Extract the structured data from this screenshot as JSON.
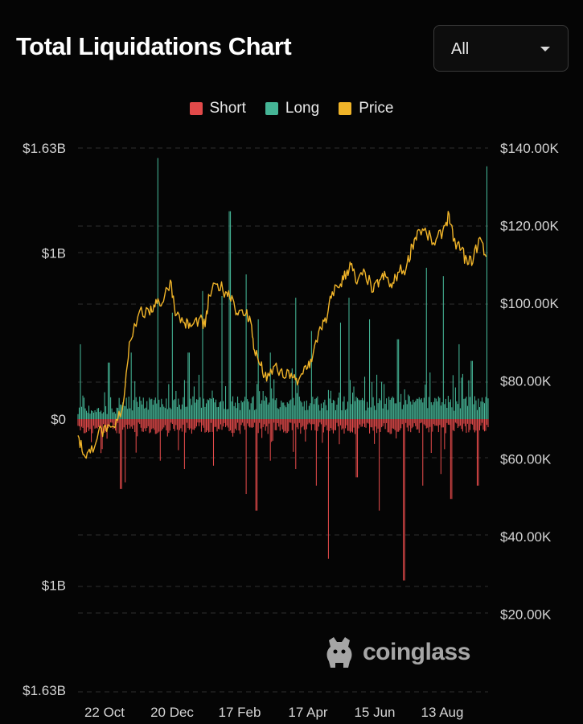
{
  "header": {
    "title": "Total Liquidations Chart",
    "range_selector": {
      "value": "All",
      "icon": "chevron-down-icon"
    }
  },
  "legend": [
    {
      "label": "Short",
      "color": "#e24a4a"
    },
    {
      "label": "Long",
      "color": "#45b596"
    },
    {
      "label": "Price",
      "color": "#f0b429"
    }
  ],
  "watermark": {
    "text": "coinglass",
    "icon": "coinglass-logo-icon"
  },
  "chart_data": {
    "type": "bar",
    "title": "Total Liquidations Chart",
    "grid": true,
    "legend_position": "top-center",
    "x_ticks": [
      "22 Oct",
      "20 Dec",
      "17 Feb",
      "17 Apr",
      "15 Jun",
      "13 Aug"
    ],
    "left_axis": {
      "ticks": [
        {
          "value": 1.63,
          "label": "$1.63B"
        },
        {
          "value": 1.0,
          "label": "$1B"
        },
        {
          "value": 0,
          "label": "$0"
        },
        {
          "value": -1.0,
          "label": "$1B"
        },
        {
          "value": -1.63,
          "label": "$1.63B"
        }
      ],
      "range": [
        -1.63,
        1.63
      ],
      "unit": "billion USD"
    },
    "right_axis": {
      "ticks": [
        {
          "value": 140000,
          "label": "$140.00K"
        },
        {
          "value": 120000,
          "label": "$120.00K"
        },
        {
          "value": 100000,
          "label": "$100.00K"
        },
        {
          "value": 80000,
          "label": "$80.00K"
        },
        {
          "value": 60000,
          "label": "$60.00K"
        },
        {
          "value": 40000,
          "label": "$40.00K"
        },
        {
          "value": 20000,
          "label": "$20.00K"
        }
      ],
      "range": [
        0,
        140000
      ]
    },
    "series": [
      {
        "name": "Long",
        "color": "#45b596",
        "kind": "bar-up",
        "peaks": [
          {
            "t": 0.005,
            "v": 0.45
          },
          {
            "t": 0.075,
            "v": 0.34
          },
          {
            "t": 0.13,
            "v": 0.4
          },
          {
            "t": 0.195,
            "v": 1.57
          },
          {
            "t": 0.23,
            "v": 0.64
          },
          {
            "t": 0.27,
            "v": 0.4
          },
          {
            "t": 0.305,
            "v": 0.77
          },
          {
            "t": 0.35,
            "v": 0.74
          },
          {
            "t": 0.37,
            "v": 1.25
          },
          {
            "t": 0.41,
            "v": 0.87
          },
          {
            "t": 0.44,
            "v": 0.6
          },
          {
            "t": 0.47,
            "v": 0.4
          },
          {
            "t": 0.53,
            "v": 0.73
          },
          {
            "t": 0.57,
            "v": 0.53
          },
          {
            "t": 0.64,
            "v": 0.58
          },
          {
            "t": 0.66,
            "v": 0.73
          },
          {
            "t": 0.71,
            "v": 0.6
          },
          {
            "t": 0.78,
            "v": 0.48
          },
          {
            "t": 0.85,
            "v": 0.91
          },
          {
            "t": 0.89,
            "v": 0.86
          },
          {
            "t": 0.93,
            "v": 0.45
          },
          {
            "t": 0.96,
            "v": 0.35
          },
          {
            "t": 0.998,
            "v": 1.52
          }
        ]
      },
      {
        "name": "Short",
        "color": "#e24a4a",
        "kind": "bar-down",
        "peaks": [
          {
            "t": 0.105,
            "v": -0.42
          },
          {
            "t": 0.115,
            "v": -0.38
          },
          {
            "t": 0.2,
            "v": -0.25
          },
          {
            "t": 0.26,
            "v": -0.3
          },
          {
            "t": 0.33,
            "v": -0.28
          },
          {
            "t": 0.41,
            "v": -0.45
          },
          {
            "t": 0.435,
            "v": -0.55
          },
          {
            "t": 0.47,
            "v": -0.25
          },
          {
            "t": 0.53,
            "v": -0.3
          },
          {
            "t": 0.58,
            "v": -0.4
          },
          {
            "t": 0.61,
            "v": -0.84
          },
          {
            "t": 0.68,
            "v": -0.35
          },
          {
            "t": 0.735,
            "v": -0.55
          },
          {
            "t": 0.795,
            "v": -0.97
          },
          {
            "t": 0.84,
            "v": -0.4
          },
          {
            "t": 0.885,
            "v": -0.33
          },
          {
            "t": 0.91,
            "v": -0.48
          },
          {
            "t": 0.975,
            "v": -0.4
          }
        ]
      },
      {
        "name": "Price",
        "color": "#f0b429",
        "kind": "line",
        "points": [
          {
            "t": 0.0,
            "v": 66000
          },
          {
            "t": 0.015,
            "v": 61000
          },
          {
            "t": 0.03,
            "v": 61500
          },
          {
            "t": 0.05,
            "v": 67000
          },
          {
            "t": 0.07,
            "v": 67000
          },
          {
            "t": 0.09,
            "v": 68000
          },
          {
            "t": 0.11,
            "v": 74000
          },
          {
            "t": 0.125,
            "v": 90000
          },
          {
            "t": 0.15,
            "v": 98000
          },
          {
            "t": 0.175,
            "v": 97000
          },
          {
            "t": 0.19,
            "v": 101000
          },
          {
            "t": 0.205,
            "v": 100000
          },
          {
            "t": 0.225,
            "v": 106000
          },
          {
            "t": 0.24,
            "v": 97000
          },
          {
            "t": 0.26,
            "v": 95000
          },
          {
            "t": 0.275,
            "v": 94000
          },
          {
            "t": 0.295,
            "v": 96000
          },
          {
            "t": 0.31,
            "v": 94000
          },
          {
            "t": 0.32,
            "v": 102000
          },
          {
            "t": 0.34,
            "v": 105000
          },
          {
            "t": 0.36,
            "v": 103000
          },
          {
            "t": 0.375,
            "v": 102000
          },
          {
            "t": 0.39,
            "v": 97000
          },
          {
            "t": 0.41,
            "v": 97500
          },
          {
            "t": 0.42,
            "v": 96000
          },
          {
            "t": 0.43,
            "v": 88000
          },
          {
            "t": 0.445,
            "v": 84000
          },
          {
            "t": 0.46,
            "v": 80000
          },
          {
            "t": 0.48,
            "v": 84000
          },
          {
            "t": 0.5,
            "v": 81000
          },
          {
            "t": 0.52,
            "v": 82000
          },
          {
            "t": 0.535,
            "v": 79000
          },
          {
            "t": 0.555,
            "v": 84000
          },
          {
            "t": 0.57,
            "v": 85000
          },
          {
            "t": 0.59,
            "v": 94000
          },
          {
            "t": 0.605,
            "v": 95000
          },
          {
            "t": 0.62,
            "v": 103000
          },
          {
            "t": 0.64,
            "v": 105000
          },
          {
            "t": 0.655,
            "v": 108000
          },
          {
            "t": 0.665,
            "v": 110000
          },
          {
            "t": 0.68,
            "v": 105000
          },
          {
            "t": 0.7,
            "v": 108000
          },
          {
            "t": 0.72,
            "v": 103000
          },
          {
            "t": 0.735,
            "v": 106000
          },
          {
            "t": 0.75,
            "v": 107000
          },
          {
            "t": 0.765,
            "v": 104000
          },
          {
            "t": 0.78,
            "v": 108000
          },
          {
            "t": 0.8,
            "v": 109000
          },
          {
            "t": 0.815,
            "v": 115000
          },
          {
            "t": 0.83,
            "v": 119000
          },
          {
            "t": 0.85,
            "v": 118000
          },
          {
            "t": 0.87,
            "v": 115000
          },
          {
            "t": 0.89,
            "v": 119000
          },
          {
            "t": 0.905,
            "v": 123000
          },
          {
            "t": 0.915,
            "v": 116000
          },
          {
            "t": 0.935,
            "v": 114000
          },
          {
            "t": 0.95,
            "v": 110000
          },
          {
            "t": 0.965,
            "v": 112000
          },
          {
            "t": 0.98,
            "v": 117000
          },
          {
            "t": 0.995,
            "v": 112000
          }
        ]
      }
    ]
  }
}
